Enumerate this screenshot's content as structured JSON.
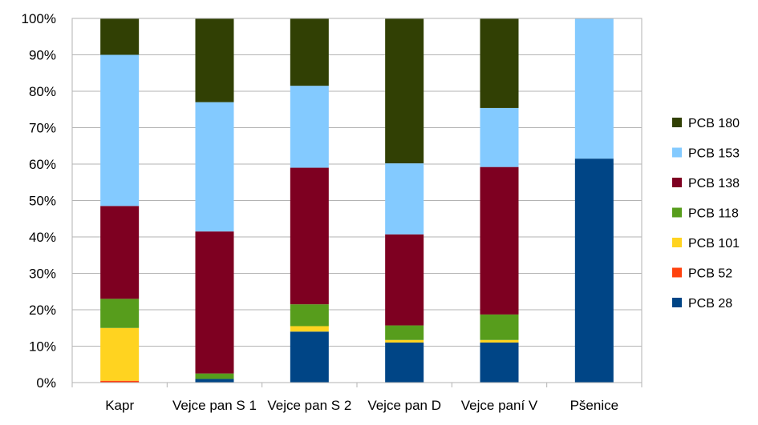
{
  "chart_data": {
    "type": "bar",
    "stacked": true,
    "percent_stacked": true,
    "categories": [
      "Kapr",
      "Vejce pan S 1",
      "Vejce pan S 2",
      "Vejce pan D",
      "Vejce paní V",
      "Pšenice"
    ],
    "ylim": [
      0,
      100
    ],
    "yticks": [
      "0%",
      "10%",
      "20%",
      "30%",
      "40%",
      "50%",
      "60%",
      "70%",
      "80%",
      "90%",
      "100%"
    ],
    "grid": true,
    "legend_position": "right",
    "series": [
      {
        "name": "PCB 28",
        "color": "#004586",
        "values": [
          0,
          1,
          14,
          11,
          11,
          61.5
        ]
      },
      {
        "name": "PCB 52",
        "color": "#ff420e",
        "values": [
          0.5,
          0,
          0,
          0,
          0,
          0
        ]
      },
      {
        "name": "PCB 101",
        "color": "#ffd320",
        "values": [
          14.5,
          0,
          1.5,
          0.7,
          0.7,
          0
        ]
      },
      {
        "name": "PCB 118",
        "color": "#579d1c",
        "values": [
          8,
          1.5,
          6,
          4,
          7,
          0
        ]
      },
      {
        "name": "PCB 138",
        "color": "#7e0021",
        "values": [
          25.5,
          39,
          37.5,
          25,
          40.5,
          0
        ]
      },
      {
        "name": "PCB 153",
        "color": "#83caff",
        "values": [
          41.5,
          35.5,
          22.5,
          19.5,
          16.2,
          38.5
        ]
      },
      {
        "name": "PCB 180",
        "color": "#314004",
        "values": [
          10,
          23,
          18.5,
          39.8,
          24.6,
          0
        ]
      }
    ],
    "legend_order": [
      "PCB 180",
      "PCB 153",
      "PCB 138",
      "PCB 118",
      "PCB 101",
      "PCB 52",
      "PCB 28"
    ]
  }
}
